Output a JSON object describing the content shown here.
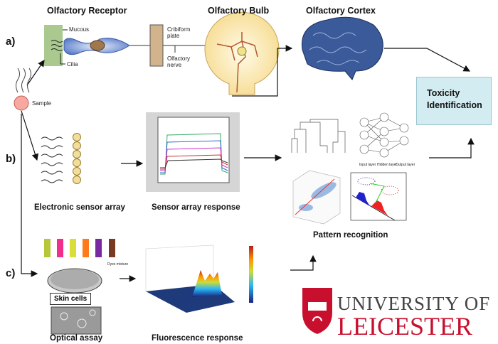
{
  "titles": {
    "receptor": "Olfactory Receptor",
    "bulb": "Olfactory Bulb",
    "cortex": "Olfactory Cortex"
  },
  "panels": {
    "a": "a)",
    "b": "b)",
    "c": "c)"
  },
  "receptor_labels": {
    "mucous": "Mucous",
    "cilia": "Cilia",
    "cribiform": "Cribiform plate",
    "nerve": "Olfactory nerve"
  },
  "sample": "Sample",
  "toxicity": {
    "line1": "Toxicity",
    "line2": "Identification"
  },
  "captions": {
    "sensor_array": "Electronic sensor array",
    "sensor_response": "Sensor array response",
    "pattern": "Pattern recognition",
    "optical": "Optical assay",
    "fluorescence": "Fluorescence response"
  },
  "optical": {
    "dyes": "Dyes mixture",
    "skin_cells": "Skin cells"
  },
  "nn_labels": {
    "input": "Input layer",
    "hidden": "Hidden layer",
    "output": "Output layer"
  },
  "logo": {
    "line1": "UNIVERSITY OF",
    "line2": "LEICESTER",
    "color": "#c8102e"
  },
  "colors": {
    "mucous": "#a9c98f",
    "cell": "#6f8fd0",
    "plate": "#d2b48c",
    "bulb": "#fbe6a8",
    "toxicity_box": "#d3ecf1"
  }
}
